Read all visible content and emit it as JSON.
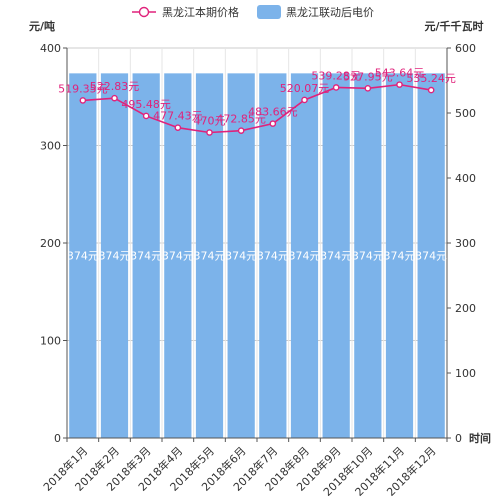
{
  "chart_data": {
    "type": "bar",
    "categories": [
      "2018年1月",
      "2018年2月",
      "2018年3月",
      "2018年4月",
      "2018年5月",
      "2018年6月",
      "2018年7月",
      "2018年8月",
      "2018年9月",
      "2018年10月",
      "2018年11月",
      "2018年12月"
    ],
    "series": [
      {
        "name": "黑龙江联动后电价",
        "type": "bar",
        "axis": "left",
        "color": "#7cb3ea",
        "values": [
          374,
          374,
          374,
          374,
          374,
          374,
          374,
          374,
          374,
          374,
          374,
          374
        ],
        "labels": [
          "374元",
          "374元",
          "374元",
          "374元",
          "374元",
          "374元",
          "374元",
          "374元",
          "374元",
          "374元",
          "374元",
          "374元"
        ]
      },
      {
        "name": "黑龙江本期价格",
        "type": "line",
        "axis": "right",
        "color": "#e0227b",
        "values": [
          519.35,
          522.83,
          495.48,
          477.43,
          470,
          472.85,
          483.66,
          520.07,
          539.28,
          537.95,
          543.64,
          535.24
        ],
        "labels": [
          "519.35元",
          "522.83元",
          "495.48元",
          "477.43元",
          "470元",
          "472.85元",
          "483.66元",
          "520.07元",
          "539.28元",
          "537.95元",
          "543.64元",
          "535.24元"
        ]
      }
    ],
    "left_axis": {
      "title": "元/吨",
      "ylim": [
        0,
        400
      ],
      "ticks": [
        0,
        100,
        200,
        300,
        400
      ]
    },
    "right_axis": {
      "title": "元/千千瓦时",
      "ylim": [
        0,
        600
      ],
      "ticks": [
        0,
        100,
        200,
        300,
        400,
        500,
        600
      ]
    },
    "xlabel": "时间",
    "grid": true,
    "legend_position": "top-center"
  }
}
